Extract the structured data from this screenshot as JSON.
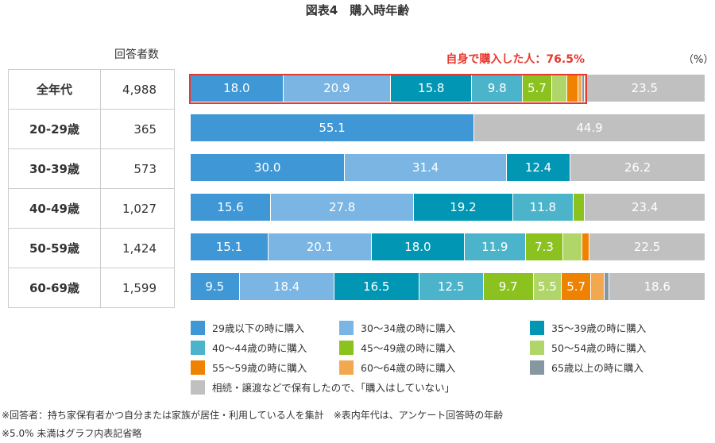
{
  "title": "図表4　購入時年齢",
  "table": {
    "header": "回答者数",
    "rows": [
      {
        "label": "全年代",
        "count": "4,988"
      },
      {
        "label": "20-29歳",
        "count": "365"
      },
      {
        "label": "30-39歳",
        "count": "573"
      },
      {
        "label": "40-49歳",
        "count": "1,027"
      },
      {
        "label": "50-59歳",
        "count": "1,424"
      },
      {
        "label": "60-69歳",
        "count": "1,599"
      }
    ]
  },
  "annotation": "自身で購入した人：76.5%",
  "unit": "（%）",
  "chart_data": {
    "type": "bar",
    "orientation": "horizontal",
    "stacked": true,
    "xlim": [
      0,
      100
    ],
    "categories": [
      "全年代",
      "20-29歳",
      "30-39歳",
      "40-49歳",
      "50-59歳",
      "60-69歳"
    ],
    "series": [
      {
        "name": "29歳以下の時に購入",
        "color": "#3f97d6",
        "values": [
          18.0,
          55.1,
          30.0,
          15.6,
          15.1,
          9.5
        ]
      },
      {
        "name": "30〜34歳の時に購入",
        "color": "#7ab5e3",
        "values": [
          20.9,
          0,
          31.4,
          27.8,
          20.1,
          18.4
        ]
      },
      {
        "name": "35〜39歳の時に購入",
        "color": "#0096b4",
        "values": [
          15.8,
          0,
          12.4,
          19.2,
          18.0,
          16.5
        ]
      },
      {
        "name": "40〜44歳の時に購入",
        "color": "#4cb4ca",
        "values": [
          9.8,
          0,
          0,
          11.8,
          11.9,
          12.5
        ]
      },
      {
        "name": "45〜49歳の時に購入",
        "color": "#8bc220",
        "values": [
          5.7,
          0,
          0,
          2.2,
          7.3,
          9.7
        ]
      },
      {
        "name": "50〜54歳の時に購入",
        "color": "#b0d66a",
        "values": [
          2.9,
          0,
          0,
          0,
          3.7,
          5.5
        ]
      },
      {
        "name": "55〜59歳の時に購入",
        "color": "#ef8200",
        "values": [
          2.2,
          0,
          0,
          0,
          1.4,
          5.7
        ]
      },
      {
        "name": "60〜64歳の時に購入",
        "color": "#f2a84e",
        "values": [
          0.8,
          0,
          0,
          0,
          0,
          2.6
        ]
      },
      {
        "name": "65歳以上の時に購入",
        "color": "#8797a1",
        "values": [
          0.4,
          0,
          0,
          0,
          0,
          1.0
        ]
      },
      {
        "name": "相続・譲渡などで保有したので、「購入はしていない」",
        "color": "#c0c0c0",
        "values": [
          23.5,
          44.9,
          26.2,
          23.4,
          22.5,
          18.6
        ]
      }
    ],
    "label_threshold": 5.0,
    "legend_position": "bottom"
  },
  "footnotes": [
    "※回答者：持ち家保有者かつ自分または家族が居住・利用している人を集計　※表内年代は、アンケート回答時の年齢",
    "※5.0% 未満はグラフ内表記省略"
  ]
}
